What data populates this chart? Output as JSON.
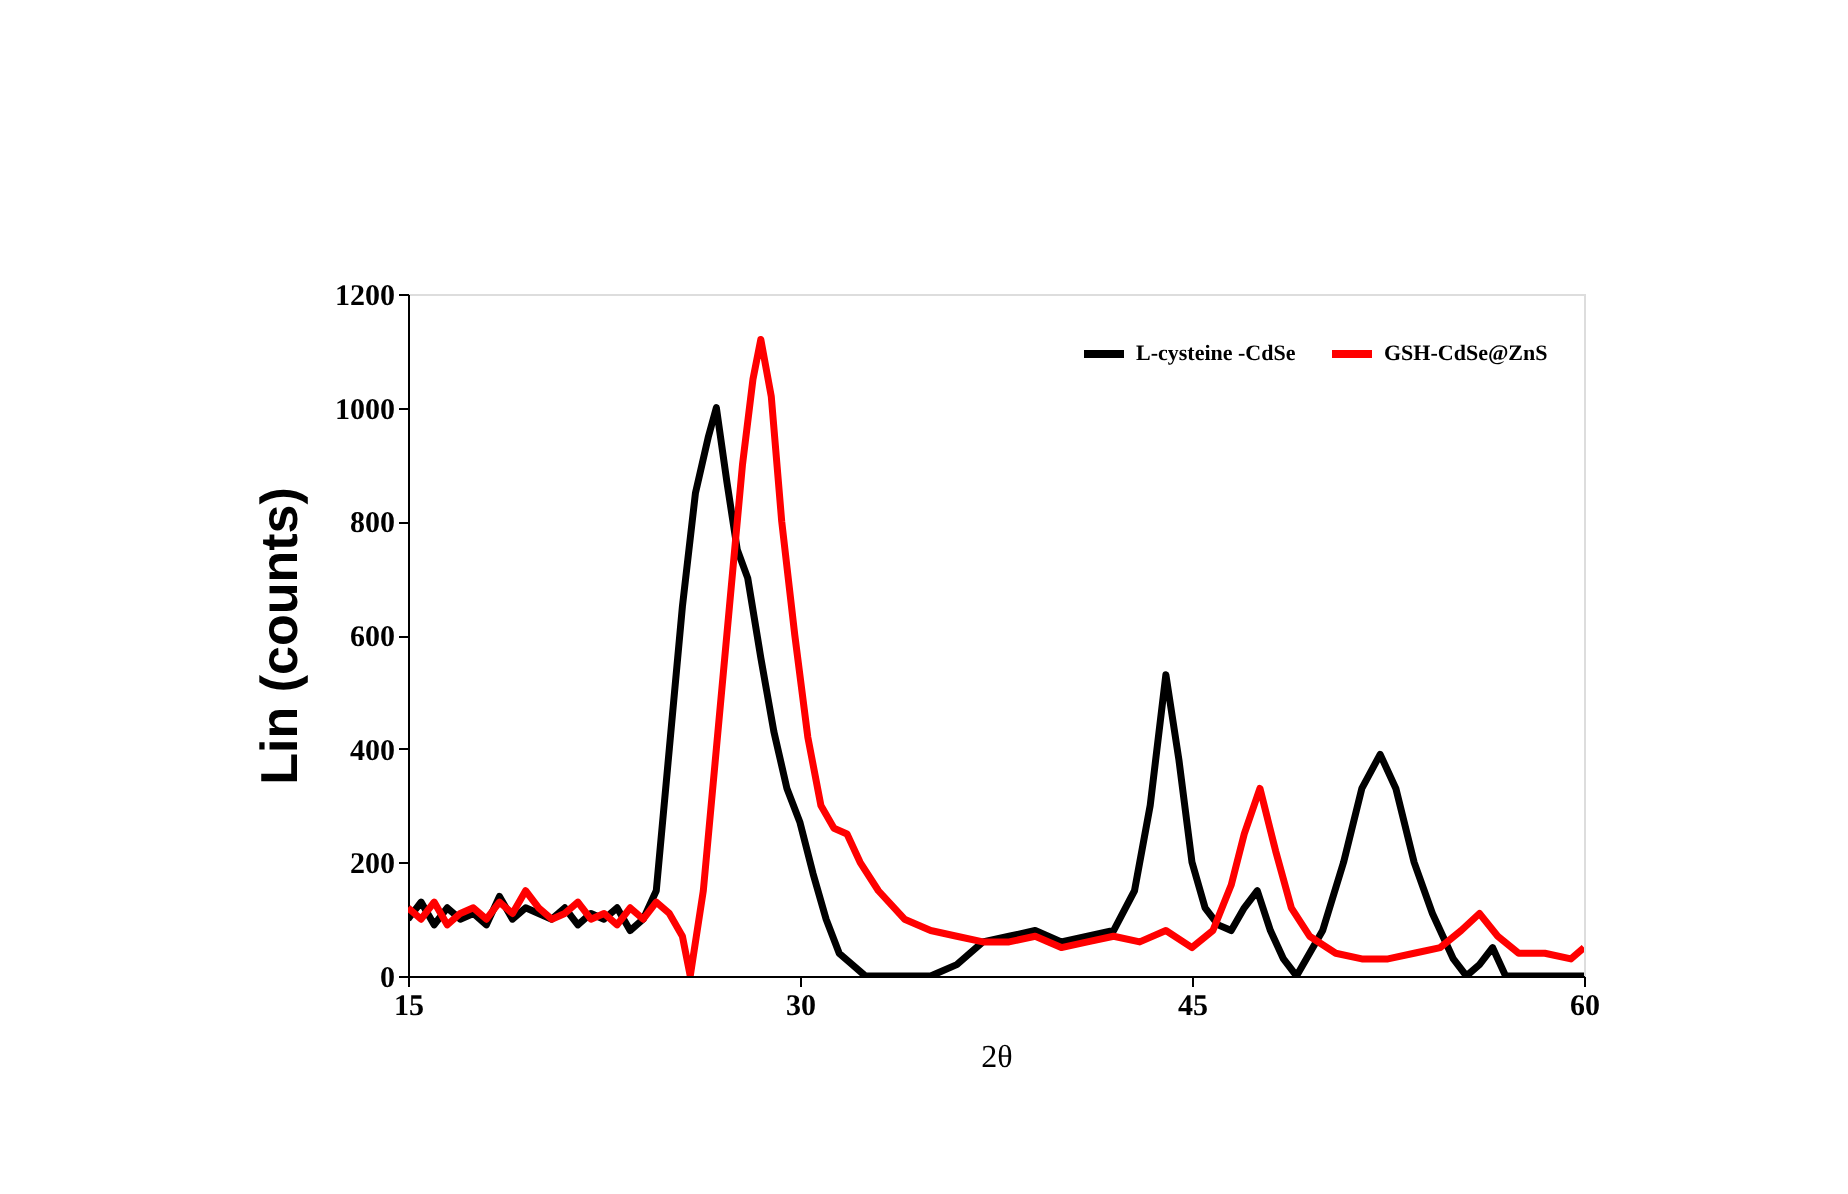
{
  "chart_data": {
    "type": "line",
    "xlabel": "2θ",
    "ylabel": "Lin  (counts)",
    "xlim": [
      15,
      60
    ],
    "xticks": [
      15,
      30,
      45,
      60
    ],
    "ylim": [
      0,
      1200
    ],
    "yticks": [
      0,
      200,
      400,
      600,
      800,
      1000,
      1200
    ],
    "grid": false,
    "legend": "top right",
    "marker": "none",
    "line_style": "solid",
    "series": [
      {
        "name": "L-cysteine -CdSe",
        "color": "#000000",
        "x": [
          15,
          15.5,
          16,
          16.5,
          17,
          17.5,
          18,
          18.5,
          19,
          19.5,
          20,
          20.5,
          21,
          21.5,
          22,
          22.5,
          23,
          23.5,
          24,
          24.5,
          25,
          25.5,
          26,
          26.5,
          26.8,
          27.2,
          27.6,
          28,
          28.5,
          29,
          29.5,
          30,
          30.5,
          31,
          31.5,
          32,
          32.5,
          33,
          34,
          35,
          36,
          37,
          38,
          39,
          40,
          41,
          42,
          42.8,
          43.4,
          44,
          44.5,
          45,
          45.5,
          46,
          46.5,
          47,
          47.5,
          48,
          48.5,
          49,
          50,
          50.8,
          51.5,
          52.2,
          52.8,
          53.5,
          54.2,
          55,
          55.5,
          56,
          56.5,
          57,
          58,
          59,
          60
        ],
        "values": [
          100,
          130,
          90,
          120,
          100,
          110,
          90,
          140,
          100,
          120,
          110,
          100,
          120,
          90,
          110,
          100,
          120,
          80,
          100,
          150,
          400,
          650,
          850,
          950,
          1000,
          870,
          750,
          700,
          560,
          430,
          330,
          270,
          180,
          100,
          40,
          20,
          0,
          0,
          0,
          0,
          20,
          60,
          70,
          80,
          60,
          70,
          80,
          150,
          300,
          530,
          380,
          200,
          120,
          90,
          80,
          120,
          150,
          80,
          30,
          0,
          80,
          200,
          330,
          390,
          330,
          200,
          110,
          30,
          0,
          20,
          50,
          0,
          0,
          0,
          0
        ]
      },
      {
        "name": "GSH-CdSe@ZnS",
        "color": "#ff0000",
        "x": [
          15,
          15.5,
          16,
          16.5,
          17,
          17.5,
          18,
          18.5,
          19,
          19.5,
          20,
          20.5,
          21,
          21.5,
          22,
          22.5,
          23,
          23.5,
          24,
          24.5,
          25,
          25.5,
          25.8,
          26.3,
          26.8,
          27.3,
          27.8,
          28.2,
          28.5,
          28.9,
          29.3,
          29.8,
          30.3,
          30.8,
          31.3,
          31.8,
          32.3,
          33,
          34,
          35,
          36,
          37,
          38,
          39,
          40,
          41,
          42,
          43,
          44,
          45,
          45.8,
          46.5,
          47,
          47.6,
          48.2,
          48.8,
          49.5,
          50.5,
          51.5,
          52.5,
          53.5,
          54.5,
          55.3,
          56,
          56.7,
          57.5,
          58.5,
          59.5,
          60
        ],
        "values": [
          120,
          100,
          130,
          90,
          110,
          120,
          100,
          130,
          110,
          150,
          120,
          100,
          110,
          130,
          100,
          110,
          90,
          120,
          100,
          130,
          110,
          70,
          0,
          150,
          400,
          650,
          900,
          1050,
          1120,
          1020,
          800,
          600,
          420,
          300,
          260,
          250,
          200,
          150,
          100,
          80,
          70,
          60,
          60,
          70,
          50,
          60,
          70,
          60,
          80,
          50,
          80,
          160,
          250,
          330,
          220,
          120,
          70,
          40,
          30,
          30,
          40,
          50,
          80,
          110,
          70,
          40,
          40,
          30,
          50
        ]
      }
    ]
  }
}
